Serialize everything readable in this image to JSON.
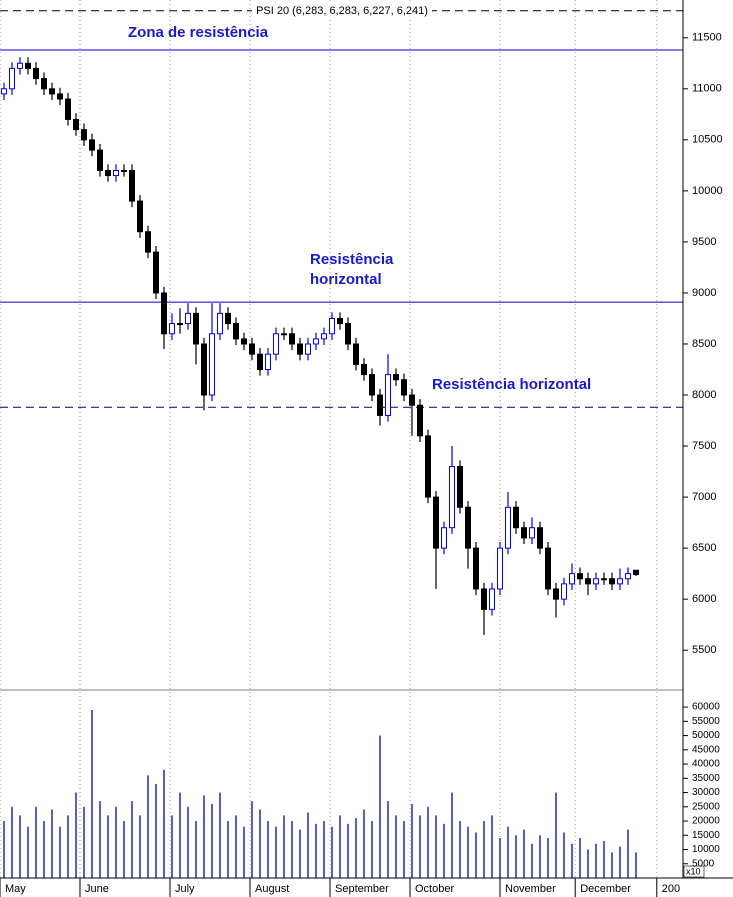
{
  "chart_data": [
    {
      "type": "candlestick",
      "title": "PSI 20 (6,283, 6,283, 6,227, 6,241)",
      "open": [
        10950,
        11000,
        11200,
        11250,
        11200,
        11100,
        11000,
        10950,
        10900,
        10700,
        10600,
        10500,
        10400,
        10200,
        10150,
        10200,
        10200,
        9900,
        9600,
        9400,
        9000,
        8600,
        8700,
        8700,
        8800,
        8500,
        8000,
        8600,
        8800,
        8700,
        8550,
        8500,
        8400,
        8250,
        8400,
        8600,
        8600,
        8500,
        8400,
        8500,
        8550,
        8600,
        8750,
        8700,
        8500,
        8300,
        8200,
        8000,
        7800,
        8200,
        8150,
        8000,
        7900,
        7600,
        7000,
        6500,
        6700,
        7300,
        6900,
        6500,
        6100,
        5900,
        6100,
        6500,
        6900,
        6700,
        6600,
        6700,
        6500,
        6100,
        6000,
        6150,
        6250,
        6200,
        6150,
        6200,
        6200,
        6150,
        6200,
        6283
      ],
      "high": [
        11060,
        11260,
        11310,
        11310,
        11260,
        11160,
        11060,
        11010,
        10960,
        10760,
        10660,
        10560,
        10460,
        10260,
        10260,
        10260,
        10260,
        9960,
        9660,
        9460,
        9060,
        8800,
        8850,
        8900,
        8860,
        8560,
        8900,
        8900,
        8860,
        8760,
        8610,
        8560,
        8460,
        8460,
        8660,
        8660,
        8660,
        8560,
        8560,
        8610,
        8660,
        8810,
        8810,
        8760,
        8560,
        8360,
        8260,
        8060,
        8400,
        8260,
        8210,
        8060,
        7960,
        7660,
        7060,
        6760,
        7500,
        7360,
        6960,
        6560,
        6160,
        6160,
        6560,
        7050,
        6960,
        6760,
        6800,
        6760,
        6560,
        6160,
        6210,
        6350,
        6310,
        6260,
        6260,
        6260,
        6260,
        6300,
        6310,
        6283
      ],
      "low": [
        10890,
        10940,
        11140,
        11140,
        11040,
        10940,
        10890,
        10840,
        10640,
        10540,
        10440,
        10340,
        10140,
        10090,
        10090,
        10140,
        9840,
        9540,
        9340,
        8940,
        8450,
        8540,
        8600,
        8640,
        8300,
        7850,
        7940,
        8540,
        8640,
        8490,
        8440,
        8340,
        8190,
        8190,
        8340,
        8540,
        8440,
        8340,
        8340,
        8440,
        8490,
        8540,
        8640,
        8440,
        8240,
        8140,
        7940,
        7700,
        7740,
        8090,
        7940,
        7600,
        7540,
        6940,
        6100,
        6440,
        6640,
        6840,
        6300,
        6040,
        5650,
        5840,
        6040,
        6440,
        6640,
        6540,
        6540,
        6440,
        6040,
        5820,
        5940,
        6090,
        6140,
        6040,
        6090,
        6140,
        6090,
        6090,
        6140,
        6227
      ],
      "close": [
        11000,
        11200,
        11250,
        11200,
        11100,
        11000,
        10950,
        10900,
        10700,
        10600,
        10500,
        10400,
        10200,
        10150,
        10200,
        10200,
        9900,
        9600,
        9400,
        9000,
        8600,
        8700,
        8700,
        8800,
        8500,
        8000,
        8600,
        8800,
        8700,
        8550,
        8500,
        8400,
        8250,
        8400,
        8600,
        8600,
        8500,
        8400,
        8500,
        8550,
        8600,
        8750,
        8700,
        8500,
        8300,
        8200,
        8000,
        7800,
        8200,
        8150,
        8000,
        7900,
        7600,
        7000,
        6500,
        6700,
        7300,
        6900,
        6500,
        6100,
        5900,
        6100,
        6500,
        6900,
        6700,
        6600,
        6700,
        6500,
        6100,
        6000,
        6150,
        6250,
        6200,
        6150,
        6200,
        6200,
        6150,
        6200,
        6250,
        6241
      ],
      "up_color": "#0000ff",
      "down_color": "#000000",
      "xlim": [
        -0.5,
        84.875
      ],
      "xticks": [
        {
          "value": -0.5,
          "label": "May"
        },
        {
          "value": 9.5,
          "label": "June"
        },
        {
          "value": 20.75,
          "label": "July"
        },
        {
          "value": 30.75,
          "label": "August"
        },
        {
          "value": 40.75,
          "label": "September"
        },
        {
          "value": 50.75,
          "label": "October"
        },
        {
          "value": 62,
          "label": "November"
        },
        {
          "value": 71.4,
          "label": "December"
        },
        {
          "value": 81.6,
          "label": "200"
        }
      ],
      "ylim": [
        5110,
        11870
      ],
      "yticks": [
        5500,
        6000,
        6500,
        7000,
        7500,
        8000,
        8500,
        9000,
        9500,
        10000,
        10500,
        11000,
        11500
      ],
      "hlines": [
        {
          "value": 11765,
          "style": "dashed",
          "color": "#000000"
        },
        {
          "value": 11380,
          "style": "solid",
          "color": "#0000cc"
        },
        {
          "value": 8910,
          "style": "solid",
          "color": "#0000cc"
        },
        {
          "value": 7880,
          "style": "dashed",
          "color": "#000066"
        }
      ],
      "annotations": [
        "Zona de resistência",
        "Resistência",
        "horizontal",
        "Resistência horizontal"
      ]
    },
    {
      "type": "bar",
      "color": "#0000cc",
      "unit_label": "x10",
      "values": [
        20000,
        25000,
        22000,
        18000,
        25000,
        20000,
        24000,
        18000,
        22000,
        30000,
        25000,
        59000,
        27000,
        22000,
        25000,
        20000,
        27000,
        22000,
        36000,
        33000,
        38000,
        22000,
        30000,
        25000,
        20000,
        29000,
        26000,
        30000,
        20000,
        22000,
        18000,
        27000,
        24000,
        20000,
        18000,
        22000,
        20000,
        17000,
        23000,
        19000,
        20000,
        18000,
        22000,
        19000,
        21000,
        24000,
        20000,
        50000,
        27000,
        22000,
        20000,
        26000,
        22000,
        25000,
        22000,
        19000,
        30000,
        20000,
        18000,
        16000,
        20000,
        22000,
        14000,
        18000,
        15000,
        17000,
        12000,
        15000,
        14000,
        30000,
        16000,
        12000,
        14000,
        10000,
        12000,
        13000,
        9000,
        11000,
        17000,
        9000
      ],
      "ylim": [
        0,
        66000
      ],
      "yticks": [
        5000,
        10000,
        15000,
        20000,
        25000,
        30000,
        35000,
        40000,
        45000,
        50000,
        55000,
        60000
      ]
    }
  ]
}
